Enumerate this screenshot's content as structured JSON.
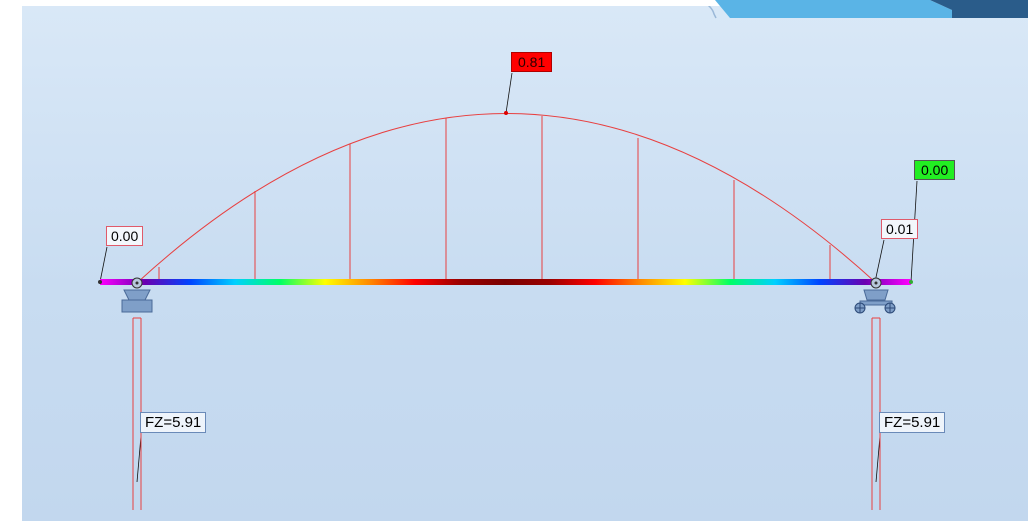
{
  "labels": {
    "max_moment": "0.81",
    "left_end": "0.00",
    "right_end": "0.00",
    "right_support": "0.01",
    "left_reaction": "FZ=5.91",
    "right_reaction": "FZ=5.91"
  },
  "colors": {
    "viewport_bg": "#cfe0f3",
    "diagram_line": "#e84040",
    "max_label_bg": "#ff0000",
    "end_label_bg": "#22ee22",
    "support_fill": "#7f9fc8"
  },
  "beam_gradient": [
    "#ff00ff",
    "#6a00b0",
    "#0044ff",
    "#00d0ff",
    "#00ff66",
    "#ffff00",
    "#ff8800",
    "#ff0000",
    "#9a0000",
    "#7a0000",
    "#9a0000",
    "#ff0000",
    "#ff8800",
    "#ffff00",
    "#00ff66",
    "#00d0ff",
    "#0044ff",
    "#6a00b0",
    "#ff00ff"
  ],
  "icons": {
    "left_support": "pinned-support-icon",
    "right_support": "roller-support-icon",
    "node": "node-marker-icon"
  }
}
